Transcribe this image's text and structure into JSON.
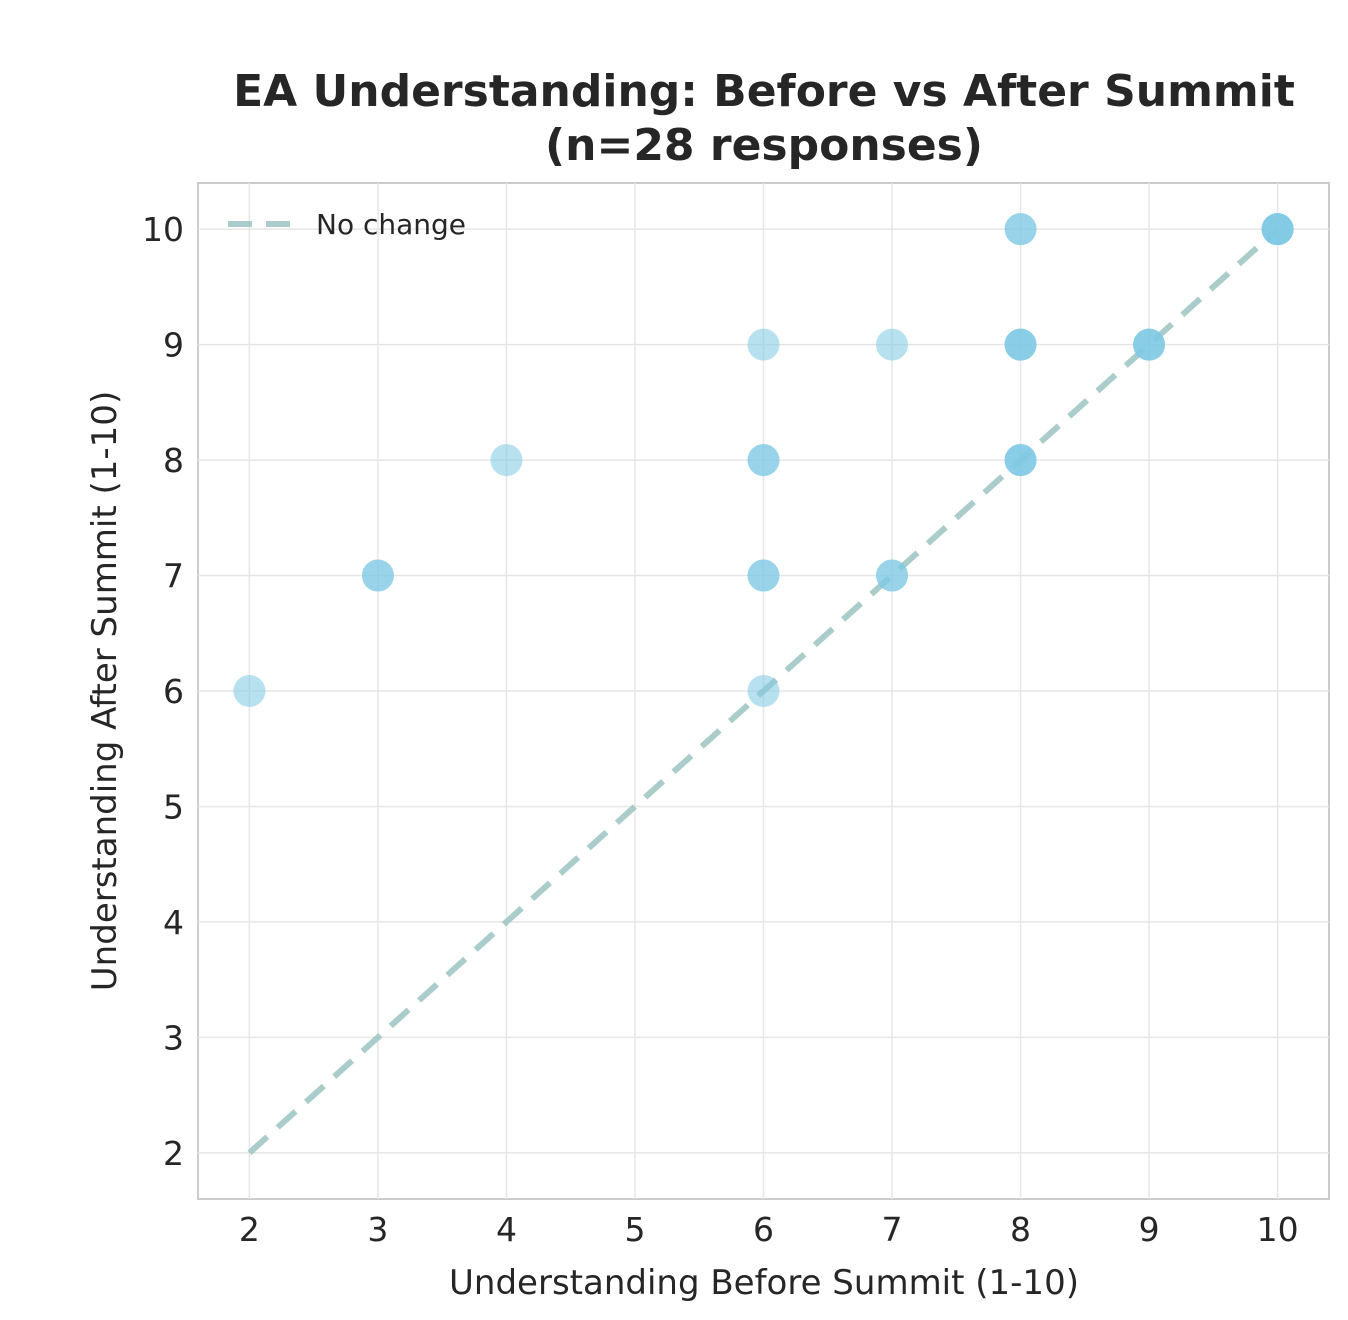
{
  "chart_data": {
    "type": "scatter",
    "title": "EA Understanding: Before vs After Summit",
    "subtitle": "(n=28 responses)",
    "xlabel": "Understanding Before Summit (1-10)",
    "ylabel": "Understanding After Summit (1-10)",
    "xlim": [
      1.6,
      10.4
    ],
    "ylim": [
      1.6,
      10.4
    ],
    "xticks": [
      "2",
      "3",
      "4",
      "5",
      "6",
      "7",
      "8",
      "9",
      "10"
    ],
    "yticks": [
      "2",
      "3",
      "4",
      "5",
      "6",
      "7",
      "8",
      "9",
      "10"
    ],
    "grid": true,
    "legend": {
      "position": "top-left",
      "entries": [
        "No change"
      ]
    },
    "reference_line": {
      "name": "No change",
      "x": [
        2,
        10
      ],
      "y": [
        2,
        10
      ],
      "style": "dashed",
      "color": "#9cc5c2"
    },
    "point_color": "#7ec8e3",
    "series": [
      {
        "name": "responses",
        "points": [
          {
            "x": 2,
            "y": 6
          },
          {
            "x": 3,
            "y": 7
          },
          {
            "x": 3,
            "y": 7
          },
          {
            "x": 4,
            "y": 8
          },
          {
            "x": 6,
            "y": 6
          },
          {
            "x": 6,
            "y": 7
          },
          {
            "x": 6,
            "y": 7
          },
          {
            "x": 6,
            "y": 8
          },
          {
            "x": 6,
            "y": 8
          },
          {
            "x": 6,
            "y": 9
          },
          {
            "x": 7,
            "y": 7
          },
          {
            "x": 7,
            "y": 7
          },
          {
            "x": 7,
            "y": 9
          },
          {
            "x": 8,
            "y": 8
          },
          {
            "x": 8,
            "y": 8
          },
          {
            "x": 8,
            "y": 8
          },
          {
            "x": 8,
            "y": 9
          },
          {
            "x": 8,
            "y": 9
          },
          {
            "x": 8,
            "y": 9
          },
          {
            "x": 8,
            "y": 10
          },
          {
            "x": 8,
            "y": 10
          },
          {
            "x": 9,
            "y": 9
          },
          {
            "x": 9,
            "y": 9
          },
          {
            "x": 9,
            "y": 9
          },
          {
            "x": 10,
            "y": 10
          },
          {
            "x": 10,
            "y": 10
          },
          {
            "x": 10,
            "y": 10
          },
          {
            "x": 10,
            "y": 10
          }
        ]
      }
    ]
  }
}
